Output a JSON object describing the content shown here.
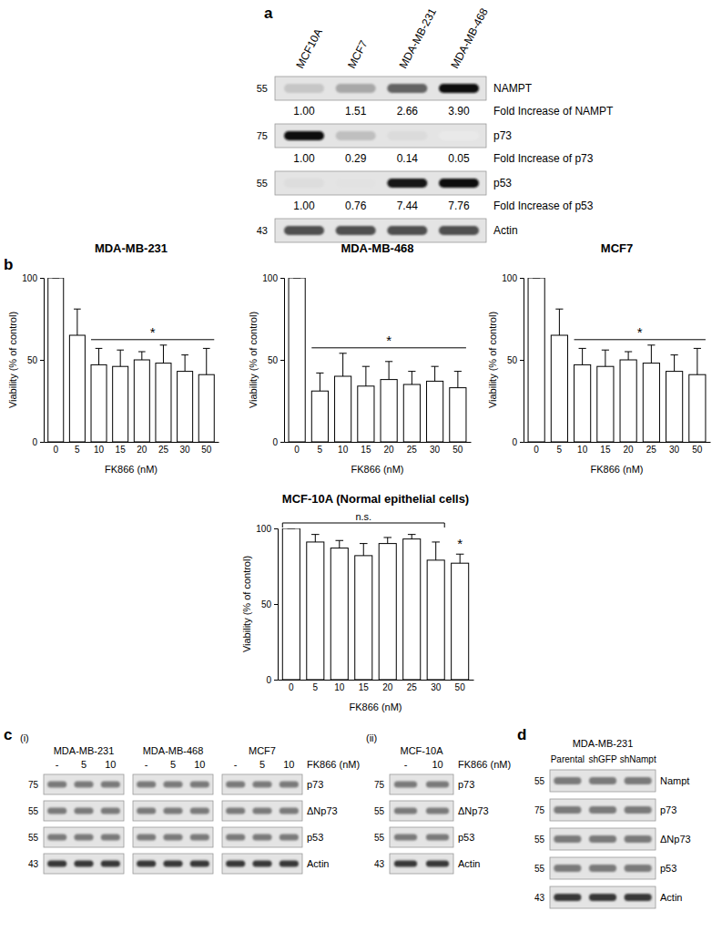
{
  "panel_labels": [
    "a",
    "b",
    "c",
    "d"
  ],
  "chart_data": [
    {
      "type": "bar",
      "title": "MDA-MB-231",
      "xlabel": "FK866 (nM)",
      "ylabel": "Viability (% of control)",
      "categories": [
        "0",
        "5",
        "10",
        "15",
        "20",
        "25",
        "30",
        "50"
      ],
      "values": [
        100,
        65,
        47,
        46,
        50,
        48,
        43,
        41
      ],
      "errors": [
        0,
        16,
        10,
        10,
        5,
        11,
        10,
        16
      ],
      "color": "#ffffff",
      "ylim": [
        0,
        100
      ],
      "yticks": [
        0,
        50,
        100
      ],
      "annotations": [
        {
          "text": "*",
          "from": "10",
          "to": "50"
        }
      ]
    },
    {
      "type": "bar",
      "title": "MDA-MB-468",
      "xlabel": "FK866 (nM)",
      "ylabel": "Viability (% of control)",
      "categories": [
        "0",
        "5",
        "10",
        "15",
        "20",
        "25",
        "30",
        "50"
      ],
      "values": [
        100,
        31,
        40,
        34,
        38,
        35,
        37,
        33
      ],
      "errors": [
        0,
        11,
        14,
        12,
        11,
        8,
        9,
        10
      ],
      "color": "#ffffff",
      "ylim": [
        0,
        100
      ],
      "yticks": [
        0,
        50,
        100
      ],
      "annotations": [
        {
          "text": "*",
          "from": "5",
          "to": "50"
        }
      ]
    },
    {
      "type": "bar",
      "title": "MCF7",
      "xlabel": "FK866 (nM)",
      "ylabel": "Viability (% of control)",
      "categories": [
        "0",
        "5",
        "10",
        "15",
        "20",
        "25",
        "30",
        "50"
      ],
      "values": [
        100,
        65,
        47,
        46,
        50,
        48,
        43,
        41
      ],
      "errors": [
        0,
        16,
        10,
        10,
        5,
        11,
        10,
        16
      ],
      "color": "#ffffff",
      "ylim": [
        0,
        100
      ],
      "yticks": [
        0,
        50,
        100
      ],
      "annotations": [
        {
          "text": "*",
          "from": "10",
          "to": "50"
        }
      ]
    },
    {
      "type": "bar",
      "title": "MCF-10A (Normal epithelial cells)",
      "xlabel": "FK866 (nM)",
      "ylabel": "Viability (% of control)",
      "categories": [
        "0",
        "5",
        "10",
        "15",
        "20",
        "25",
        "30",
        "50"
      ],
      "values": [
        100,
        91,
        87,
        82,
        90,
        93,
        79,
        77
      ],
      "errors": [
        0,
        5,
        5,
        8,
        4,
        3,
        12,
        6
      ],
      "color": "#ffffff",
      "ylim": [
        0,
        100
      ],
      "yticks": [
        0,
        50,
        100
      ],
      "annotations": [
        {
          "text": "n.s.",
          "from": "0",
          "to": "30"
        },
        {
          "text": "*",
          "from": "50",
          "to": "50"
        }
      ]
    }
  ],
  "blots": {
    "a": {
      "lanes": [
        "MCF10A",
        "MCF7",
        "MDA-MB-231",
        "MDA-MB-468"
      ],
      "rows": [
        {
          "marker": 55,
          "label": "NAMPT",
          "fold_label": "Fold Increase of NAMPT",
          "fold": [
            {
              "value": 1,
              "label": "1.00"
            },
            1.51,
            2.66,
            {
              "value": 3.9,
              "label": "3.90"
            }
          ]
        },
        {
          "marker": 75,
          "label": "p73",
          "fold_label": "Fold Increase of p73",
          "fold": [
            {
              "value": 1,
              "label": "1.00"
            },
            0.29,
            0.14,
            0.05
          ]
        },
        {
          "marker": 55,
          "label": "p53",
          "fold_label": "Fold Increase of p53",
          "fold": [
            {
              "value": 1,
              "label": "1.00"
            },
            0.76,
            7.44,
            7.76
          ]
        },
        {
          "marker": 43,
          "label": "Actin"
        }
      ]
    },
    "c": {
      "groups": [
        {
          "sublabel": "(i)",
          "treatment": "FK866 (nM)",
          "markers": [
            75,
            55,
            55,
            43
          ],
          "proteins": [
            "p73",
            "ΔNp73",
            "p53",
            "Actin"
          ],
          "blots": [
            {
              "title": "MDA-MB-231",
              "lanes": [
                "-",
                "5",
                "10"
              ]
            },
            {
              "title": "MDA-MB-468",
              "lanes": [
                "-",
                "5",
                "10"
              ]
            },
            {
              "title": "MCF7",
              "lanes": [
                "-",
                "5",
                "10"
              ]
            }
          ]
        },
        {
          "sublabel": "(ii)",
          "treatment": "FK866 (nM)",
          "markers": [
            75,
            55,
            55,
            43
          ],
          "proteins": [
            "p73",
            "ΔNp73",
            "p53",
            "Actin"
          ],
          "blots": [
            {
              "title": "MCF-10A",
              "lanes": [
                "-",
                "10"
              ]
            }
          ]
        }
      ]
    },
    "d": {
      "title": "MDA-MB-231",
      "lanes": [
        "Parental",
        "shGFP",
        "shNampt"
      ],
      "markers": [
        55,
        75,
        55,
        55,
        43
      ],
      "proteins": [
        "Nampt",
        "p73",
        "ΔNp73",
        "p53",
        "Actin"
      ]
    }
  }
}
